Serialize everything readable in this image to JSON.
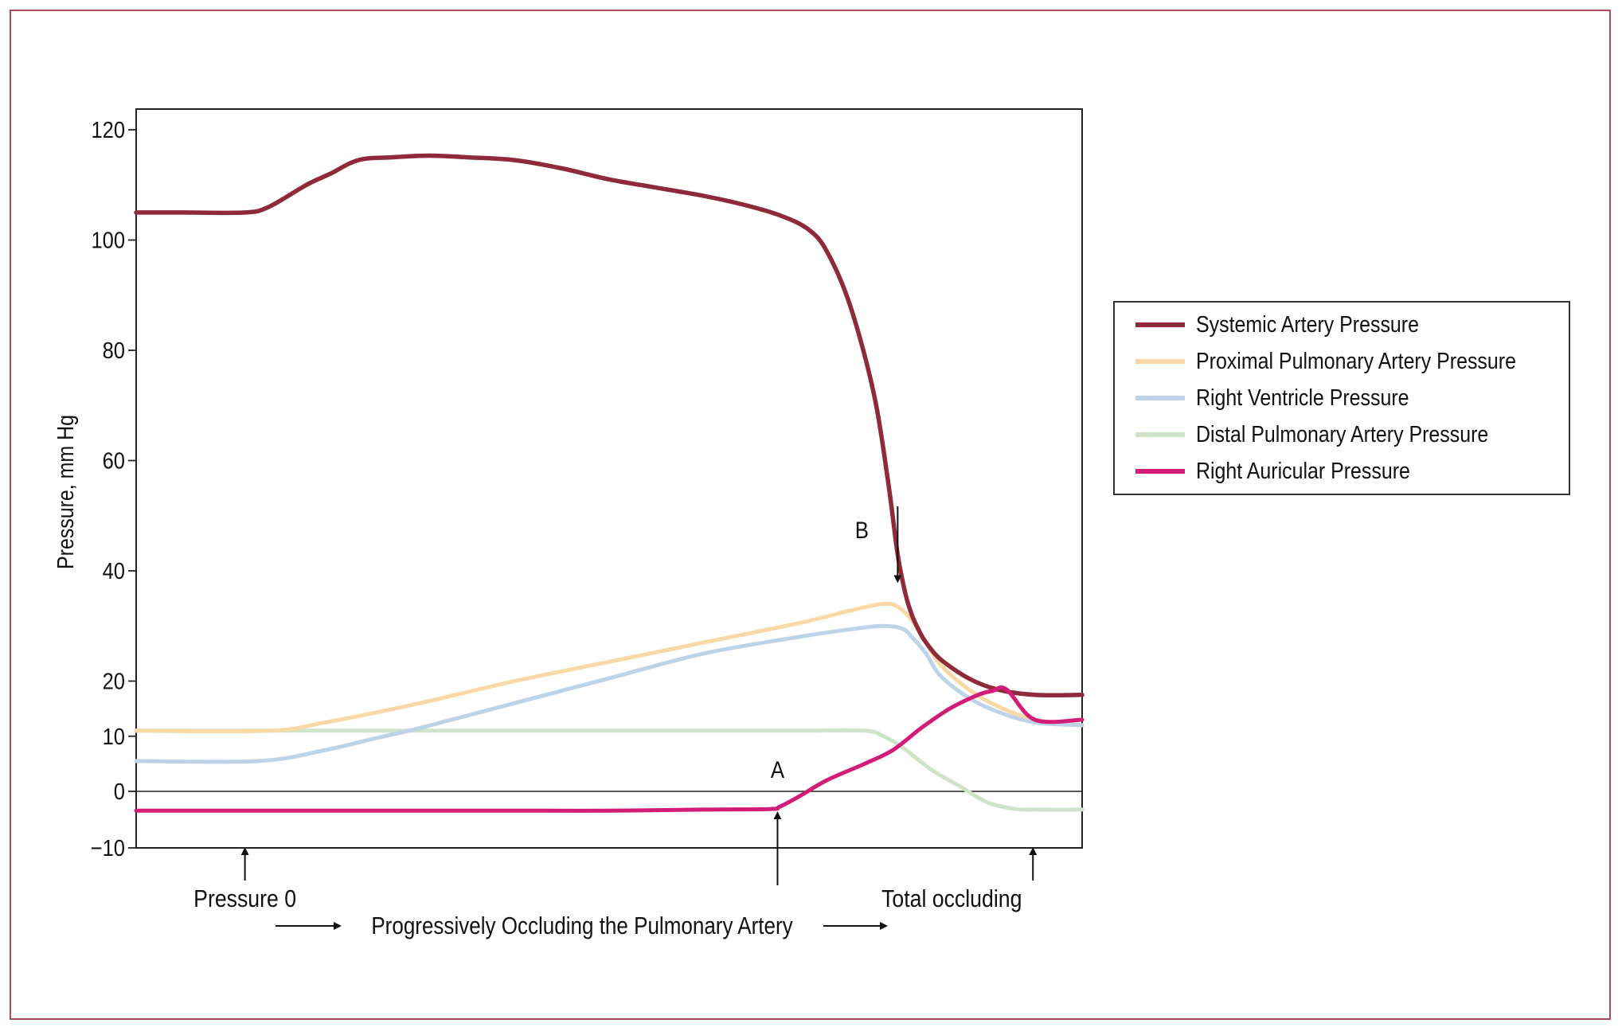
{
  "chart_data": {
    "type": "line",
    "title": "",
    "xlabel": "Progressively Occluding the Pulmonary Artery",
    "ylabel": "Pressure, mm Hg",
    "xlim": [
      0,
      100
    ],
    "ylim": [
      -10,
      124
    ],
    "y_ticks": [
      "120",
      "100",
      "80",
      "60",
      "40",
      "20",
      "10",
      "0",
      "−10"
    ],
    "y_tick_values": [
      120,
      100,
      80,
      60,
      40,
      20,
      10,
      0,
      -10
    ],
    "grid": false,
    "legend_position": "right",
    "series": [
      {
        "name": "Systemic Artery Pressure",
        "color": "#8e2a3a",
        "x": [
          0,
          5,
          11.5,
          14,
          18,
          20.5,
          23.5,
          27,
          31,
          35,
          40,
          45,
          50,
          55,
          60,
          64,
          68,
          71,
          73,
          75.5,
          78,
          79.5,
          80.5,
          81.3,
          82,
          82.8,
          83.5,
          85,
          88,
          91,
          95,
          100
        ],
        "y": [
          105,
          105,
          105,
          106,
          110,
          112,
          114.5,
          115,
          115.3,
          115,
          114.5,
          113,
          111,
          109.5,
          108,
          106.5,
          104.5,
          102,
          98,
          88,
          72,
          56,
          43,
          36,
          32,
          29,
          27,
          24,
          20.5,
          18.5,
          17.5,
          17.5
        ]
      },
      {
        "name": "Proximal Pulmonary Artery Pressure",
        "color": "#f8d9a6",
        "x": [
          0,
          14,
          20,
          30,
          40,
          50,
          60,
          70,
          76,
          79,
          80.5,
          82,
          83.5,
          85,
          88,
          91,
          95,
          100
        ],
        "y": [
          11,
          11,
          12.5,
          16,
          20,
          23.5,
          27,
          30.5,
          33,
          34,
          33.5,
          31,
          27,
          23,
          18.5,
          15.5,
          13,
          12
        ]
      },
      {
        "name": "Right Ventricle Pressure",
        "color": "#bcd3e8",
        "x": [
          0,
          13,
          20,
          25,
          30,
          40,
          50,
          60,
          70,
          76,
          79,
          81,
          82,
          83.5,
          85,
          88,
          91,
          95,
          100
        ],
        "y": [
          5.5,
          5.5,
          7.5,
          9.5,
          11.5,
          16,
          20.5,
          25,
          28,
          29.5,
          30,
          29.5,
          28,
          25,
          21,
          17,
          14.5,
          12.5,
          12
        ]
      },
      {
        "name": "Distal Pulmonary Artery Pressure",
        "color": "#cfe3c9",
        "x": [
          0,
          10,
          20,
          30,
          40,
          50,
          60,
          70,
          77,
          79,
          81,
          84,
          87,
          90,
          93,
          95,
          100
        ],
        "y": [
          11,
          11,
          11,
          11,
          11,
          11,
          11,
          11,
          11,
          10,
          8,
          4,
          1,
          -2,
          -3.2,
          -3.3,
          -3.3
        ]
      },
      {
        "name": "Right Auricular Pressure",
        "color": "#d21c78",
        "x": [
          0,
          10,
          20,
          30,
          40,
          50,
          60,
          67,
          68,
          70,
          73,
          77,
          80,
          83,
          86,
          89,
          90.5,
          92,
          95,
          100
        ],
        "y": [
          -3.5,
          -3.5,
          -3.5,
          -3.5,
          -3.5,
          -3.5,
          -3.3,
          -3.2,
          -2.8,
          -1,
          2,
          5,
          7.5,
          11.5,
          15,
          17.5,
          18.2,
          18.5,
          13,
          13
        ]
      }
    ],
    "annotations": {
      "a_label": "A",
      "b_label": "B",
      "pressure0_label": "Pressure 0",
      "total_label": "Total occluding",
      "a_arrow_x": 67.8,
      "a_arrow_y": -3.2,
      "b_arrow_x": 80.5,
      "b_arrow_y": 38.5,
      "pressure0_arrow_x": 11.5,
      "total_arrow_x": 94.8
    }
  }
}
